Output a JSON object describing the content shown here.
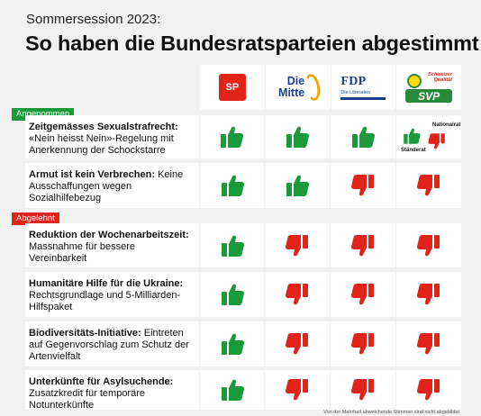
{
  "header": {
    "kicker": "Sommersession 2023:",
    "title": "So haben die Bundesratsparteien abgestimmt"
  },
  "parties": [
    {
      "name": "SP",
      "color": "#e2231a"
    },
    {
      "name": "Die Mitte",
      "line1": "Die",
      "line2": "Mitte",
      "color": "#1c3f94",
      "accent": "#f7a600"
    },
    {
      "name": "FDP",
      "sub": "Die Liberalen",
      "color": "#1a3d8f"
    },
    {
      "name": "SVP",
      "tag1": "Schweizer",
      "tag2": "Qualität",
      "color": "#2a8a3c"
    }
  ],
  "sections": {
    "accepted": "Angenommen",
    "rejected": "Abgelehnt"
  },
  "votes_legend": {
    "yes_color": "#1b9a3c",
    "no_color": "#e2231a",
    "nationalrat": "Nationalrat",
    "staenderat": "Ständerat"
  },
  "rows": [
    {
      "title": "Zeitgemässes Sexualstrafrecht:",
      "desc": "«Nein heisst Nein»-Regelung mit Anerkennung der Schockstarre",
      "section": "accepted",
      "votes": [
        "yes",
        "yes",
        "yes",
        "split"
      ]
    },
    {
      "title": "Armut ist kein Verbrechen:",
      "desc": "Keine Ausschaffungen wegen Sozialhilfebezug",
      "section": "accepted",
      "votes": [
        "yes",
        "yes",
        "no",
        "no"
      ]
    },
    {
      "title": "Reduktion der Wochenarbeitszeit:",
      "desc": "Massnahme für bessere Vereinbarkeit",
      "section": "rejected",
      "votes": [
        "yes",
        "no",
        "no",
        "no"
      ]
    },
    {
      "title": "Humanitäre Hilfe für die Ukraine:",
      "desc": "Rechtsgrundlage und 5-Milliarden-Hilfspaket",
      "section": "rejected",
      "votes": [
        "yes",
        "no",
        "no",
        "no"
      ]
    },
    {
      "title": "Biodiversitäts-Initiative:",
      "desc": "Eintreten auf Gegenvorschlag zum Schutz der Artenvielfalt",
      "section": "rejected",
      "votes": [
        "yes",
        "no",
        "no",
        "no"
      ]
    },
    {
      "title": "Unterkünfte für Asylsuchende:",
      "desc": "Zusatzkredit für temporäre Notunterkünfte",
      "section": "rejected",
      "votes": [
        "yes",
        "no",
        "no",
        "no"
      ]
    }
  ],
  "footnote": "Von der Mehrheit abweichende Stimmen sind nicht abgebildet"
}
